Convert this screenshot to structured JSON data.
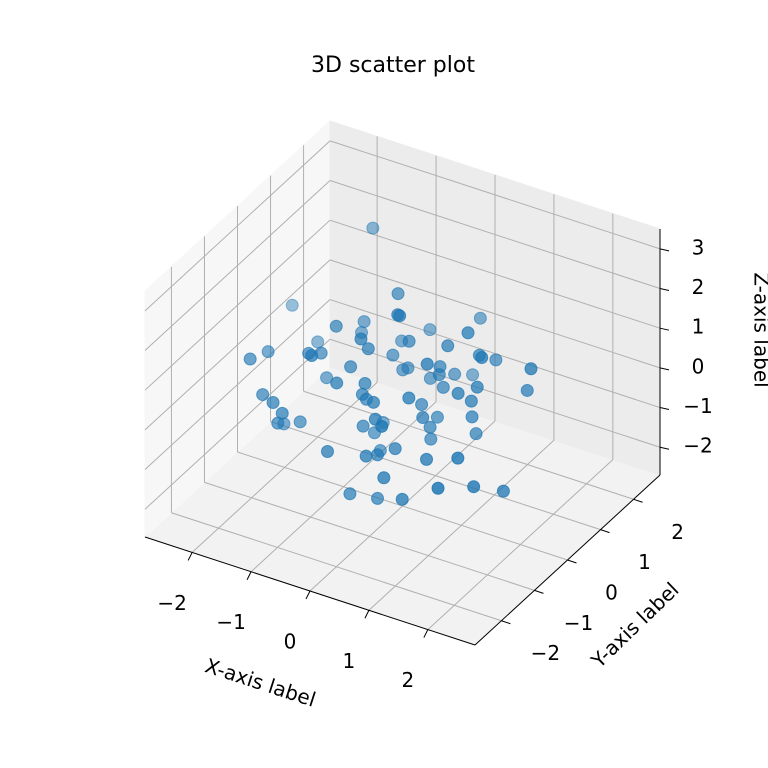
{
  "chart_data": {
    "type": "scatter3d",
    "title": "3D scatter plot",
    "xlabel": "X-axis label",
    "ylabel": "Y-axis label",
    "zlabel": "Z-axis label",
    "color": "#1f77b4",
    "x": [
      0.5,
      -1.4,
      0.6,
      1.5,
      -0.2,
      -0.2,
      1.6,
      0.8,
      -0.5,
      0.5,
      -0.5,
      -0.5,
      0.2,
      -1.9,
      -1.7,
      -0.6,
      -1.0,
      0.3,
      -0.9,
      -1.4,
      1.5,
      -0.2,
      0.1,
      -1.4,
      -0.5,
      0.1,
      -1.2,
      0.4,
      -0.6,
      -0.3,
      -0.6,
      1.9,
      0.0,
      -1.1,
      0.8,
      -1.2,
      0.2,
      -2.0,
      -1.3,
      0.2,
      0.7,
      0.2,
      -0.1,
      -0.3,
      -1.5,
      -0.7,
      -0.5,
      1.1,
      0.3,
      -1.8,
      0.3,
      -0.4,
      -0.7,
      0.6,
      1.0,
      0.9,
      -0.8,
      -0.3,
      0.3,
      1.0,
      -0.5,
      -0.2,
      -1.1,
      -1.2,
      0.8,
      1.4,
      -0.1,
      1.0,
      0.4,
      -0.6,
      0.4,
      1.5,
      0.0,
      1.6,
      -2.6,
      0.8,
      0.1,
      -0.3,
      0.1,
      -2.0
    ],
    "y": [
      -0.7,
      0.2,
      0.3,
      -1.0,
      1.2,
      -0.9,
      -0.7,
      1.4,
      -1.1,
      -0.9,
      0.6,
      -0.2,
      2.0,
      -0.2,
      -1.2,
      -0.5,
      1.2,
      0.6,
      -0.4,
      -0.6,
      1.1,
      -0.4,
      -1.0,
      1.6,
      -0.3,
      0.4,
      -0.7,
      -0.1,
      0.4,
      -0.6,
      1.9,
      0.5,
      -1.1,
      0.8,
      0.8,
      -1.5,
      -0.5,
      1.0,
      -1.6,
      0.5,
      -0.5,
      0.7,
      -0.7,
      0.7,
      -1.1,
      -1.5,
      -0.7,
      0.3,
      0.7,
      -1.4,
      0.3,
      -0.5,
      0.4,
      -1.7,
      0.2,
      0.5,
      1.4,
      -0.5,
      -1.1,
      -0.1,
      0.9,
      -0.4,
      -0.5,
      0.9,
      -0.7,
      -0.1,
      2.3,
      0.3,
      -0.8,
      -1.2,
      0.4,
      -1.6,
      0.2,
      0.2,
      1.3,
      0.9,
      -0.4,
      0.4,
      1.4,
      -0.5
    ],
    "z": [
      0.8,
      -0.3,
      1.4,
      0.0,
      -0.5,
      2.1,
      -0.9,
      0.3,
      1.0,
      -1.6,
      0.4,
      -0.1,
      0.6,
      -1.4,
      0.2,
      0.9,
      -2.0,
      0.5,
      1.7,
      -0.8,
      0.1,
      -1.2,
      0.3,
      2.4,
      -0.7,
      -0.4,
      1.1,
      -0.2,
      -1.9,
      0.7,
      0.0,
      1.3,
      -0.6,
      0.8,
      -1.1,
      0.2,
      2.6,
      -0.3,
      0.5,
      -1.3,
      1.6,
      -0.9,
      0.4,
      0.1,
      -0.5,
      1.9,
      -2.1,
      0.6,
      -0.1,
      1.2,
      -0.8,
      0.3,
      -1.5,
      0.9,
      2.0,
      -0.4,
      0.0,
      1.5,
      -1.0,
      0.7,
      -0.2,
      -2.3,
      1.0,
      0.4,
      -0.6,
      1.8,
      -1.2,
      0.2,
      2.9,
      -0.7,
      0.5,
      -0.3,
      1.3,
      -1.7,
      0.1,
      0.8,
      -0.9,
      2.2,
      -0.4,
      0.6
    ],
    "xlim": [
      -2.8,
      2.8
    ],
    "ylim": [
      -2.8,
      2.8
    ],
    "zlim": [
      -2.7,
      3.5
    ],
    "xticks": [
      {
        "value": -2,
        "label": "−2"
      },
      {
        "value": -1,
        "label": "−1"
      },
      0,
      1,
      2
    ],
    "yticks": [
      {
        "value": -2,
        "label": "−2"
      },
      {
        "value": -1,
        "label": "−1"
      },
      0,
      1,
      2
    ],
    "zticks": [
      {
        "value": -2,
        "label": "−2"
      },
      {
        "value": -1,
        "label": "−1"
      },
      0,
      1,
      2,
      3
    ],
    "grid": true
  }
}
